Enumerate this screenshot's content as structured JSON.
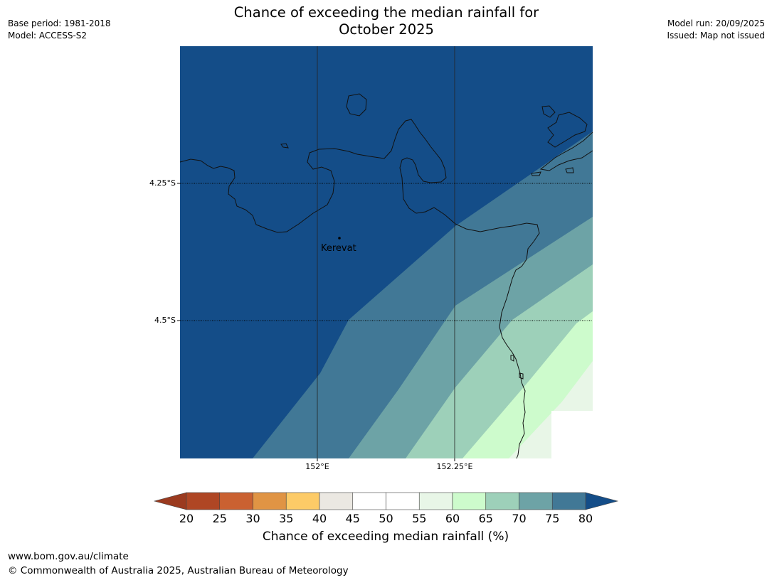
{
  "title_line1": "Chance of exceeding the median rainfall for",
  "title_line2": "October 2025",
  "meta_left": {
    "base_period": "Base period: 1981-2018",
    "model": "Model: ACCESS-S2"
  },
  "meta_right": {
    "model_run": "Model run: 20/09/2025",
    "issued": "Issued: Map not issued"
  },
  "map": {
    "lat_labels": [
      "4.25°S",
      "4.5°S"
    ],
    "lon_labels": [
      "152°E",
      "152.25°E"
    ],
    "place": "Kerevat"
  },
  "colorbar": {
    "ticks": [
      "20",
      "25",
      "30",
      "35",
      "40",
      "45",
      "50",
      "55",
      "60",
      "65",
      "70",
      "75",
      "80"
    ],
    "label": "Chance of exceeding median rainfall (%)",
    "colors": [
      "#af4624",
      "#ca6131",
      "#e09444",
      "#fdcb67",
      "#ebe8e2",
      "#ffffff",
      "#ffffff",
      "#e8f6e7",
      "#cdfbcc",
      "#9dd0b9",
      "#6da3a6",
      "#417896"
    ],
    "under_color": "#9b3a1f",
    "over_color": "#144d88"
  },
  "footer": {
    "url": "www.bom.gov.au/climate",
    "copyright": "© Commonwealth of Australia 2025, Australian Bureau of Meteorology"
  }
}
